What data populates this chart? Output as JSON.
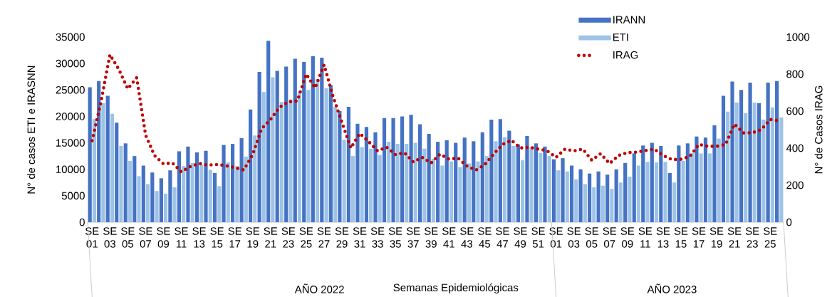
{
  "chart_data": {
    "type": "bar",
    "categories": [
      "SE 01",
      null,
      "SE 03",
      null,
      "SE 05",
      null,
      "SE 07",
      null,
      "SE 09",
      null,
      "SE 11",
      null,
      "SE 13",
      null,
      "SE 15",
      null,
      "SE 17",
      null,
      "SE 19",
      null,
      "SE 21",
      null,
      "SE 23",
      null,
      "SE 25",
      null,
      "SE 27",
      null,
      "SE 29",
      null,
      "SE 31",
      null,
      "SE 33",
      null,
      "SE 35",
      null,
      "SE 37",
      null,
      "SE 39",
      null,
      "SE 41",
      null,
      "SE 43",
      null,
      "SE 45",
      null,
      "SE 47",
      null,
      "SE 49",
      null,
      "SE 51",
      null,
      "SE 01",
      null,
      "SE 03",
      null,
      "SE 05",
      null,
      "SE 07",
      null,
      "SE 09",
      null,
      "SE 11",
      null,
      "SE 13",
      null,
      "SE 15",
      null,
      "SE 17",
      null,
      "SE 19",
      null,
      "SE 21",
      null,
      "SE 23",
      null,
      "SE 25",
      null
    ],
    "series": [
      {
        "name": "IRANN",
        "color": "#4472c4",
        "values": [
          25500,
          26700,
          23900,
          18800,
          14900,
          12500,
          10700,
          9400,
          8300,
          9800,
          13400,
          14300,
          13200,
          13500,
          9300,
          14600,
          14800,
          15900,
          21300,
          28400,
          34300,
          28600,
          29400,
          30900,
          30300,
          31400,
          31100,
          25900,
          21000,
          21800,
          18600,
          18000,
          17000,
          19700,
          19700,
          20000,
          20300,
          18500,
          16700,
          15200,
          15500,
          15000,
          16000,
          15300,
          17000,
          19400,
          19500,
          17300,
          14700,
          16300,
          14900,
          14300,
          11900,
          12100,
          10700,
          10000,
          9200,
          9600,
          9000,
          10000,
          11200,
          13000,
          14500,
          15000,
          14400,
          9300,
          14500,
          14900,
          16200,
          16000,
          18300,
          23900,
          26600,
          25000,
          26400,
          22500,
          26400,
          26700
        ]
      },
      {
        "name": "ETI",
        "color": "#9dc3e6",
        "values": [
          19500,
          22500,
          20500,
          14400,
          11600,
          8700,
          7200,
          5900,
          5400,
          6600,
          10600,
          11200,
          10800,
          9900,
          6800,
          11300,
          10600,
          12400,
          16400,
          24600,
          27400,
          22700,
          23200,
          24700,
          25000,
          27100,
          25300,
          21800,
          15600,
          12500,
          14200,
          13900,
          12700,
          15200,
          14800,
          14800,
          15000,
          13900,
          12000,
          10700,
          11500,
          10400,
          11100,
          11500,
          12500,
          15300,
          16100,
          14400,
          11700,
          14200,
          13100,
          12500,
          9800,
          9600,
          8100,
          7200,
          6600,
          6900,
          6300,
          7500,
          8600,
          10700,
          11400,
          11300,
          11400,
          7500,
          11600,
          13100,
          13000,
          13000,
          15800,
          20900,
          22600,
          20600,
          22600,
          19400,
          21700,
          19800
        ]
      },
      {
        "name": "IRAG",
        "type": "line",
        "axis": "y2",
        "color": "#c00000",
        "line_style": "dotted",
        "values": [
          440,
          650,
          905,
          825,
          720,
          780,
          470,
          360,
          315,
          320,
          272,
          300,
          317,
          308,
          312,
          305,
          295,
          282,
          365,
          505,
          555,
          620,
          650,
          655,
          800,
          725,
          850,
          680,
          540,
          400,
          480,
          435,
          385,
          405,
          365,
          375,
          325,
          350,
          320,
          368,
          340,
          347,
          304,
          281,
          310,
          368,
          420,
          443,
          401,
          405,
          395,
          386,
          350,
          395,
          385,
          395,
          335,
          370,
          317,
          360,
          376,
          378,
          387,
          395,
          360,
          338,
          340,
          355,
          420,
          410,
          410,
          420,
          530,
          482,
          483,
          500,
          555,
          547
        ]
      }
    ],
    "ylabel": "N° de casos ETI e IRASNN",
    "y2label": "N° de Casos IRAG",
    "xlabel": "Semanas Epidemiológicas",
    "ylim": [
      0,
      35000
    ],
    "yticks": [
      0,
      5000,
      10000,
      15000,
      20000,
      25000,
      30000,
      35000
    ],
    "y2lim": [
      0,
      1000
    ],
    "y2ticks": [
      0,
      200,
      400,
      600,
      800,
      1000
    ],
    "annotations": [
      "AÑO 2022",
      "AÑO 2023"
    ],
    "legend": "top right",
    "grid": false,
    "marker": "none"
  }
}
